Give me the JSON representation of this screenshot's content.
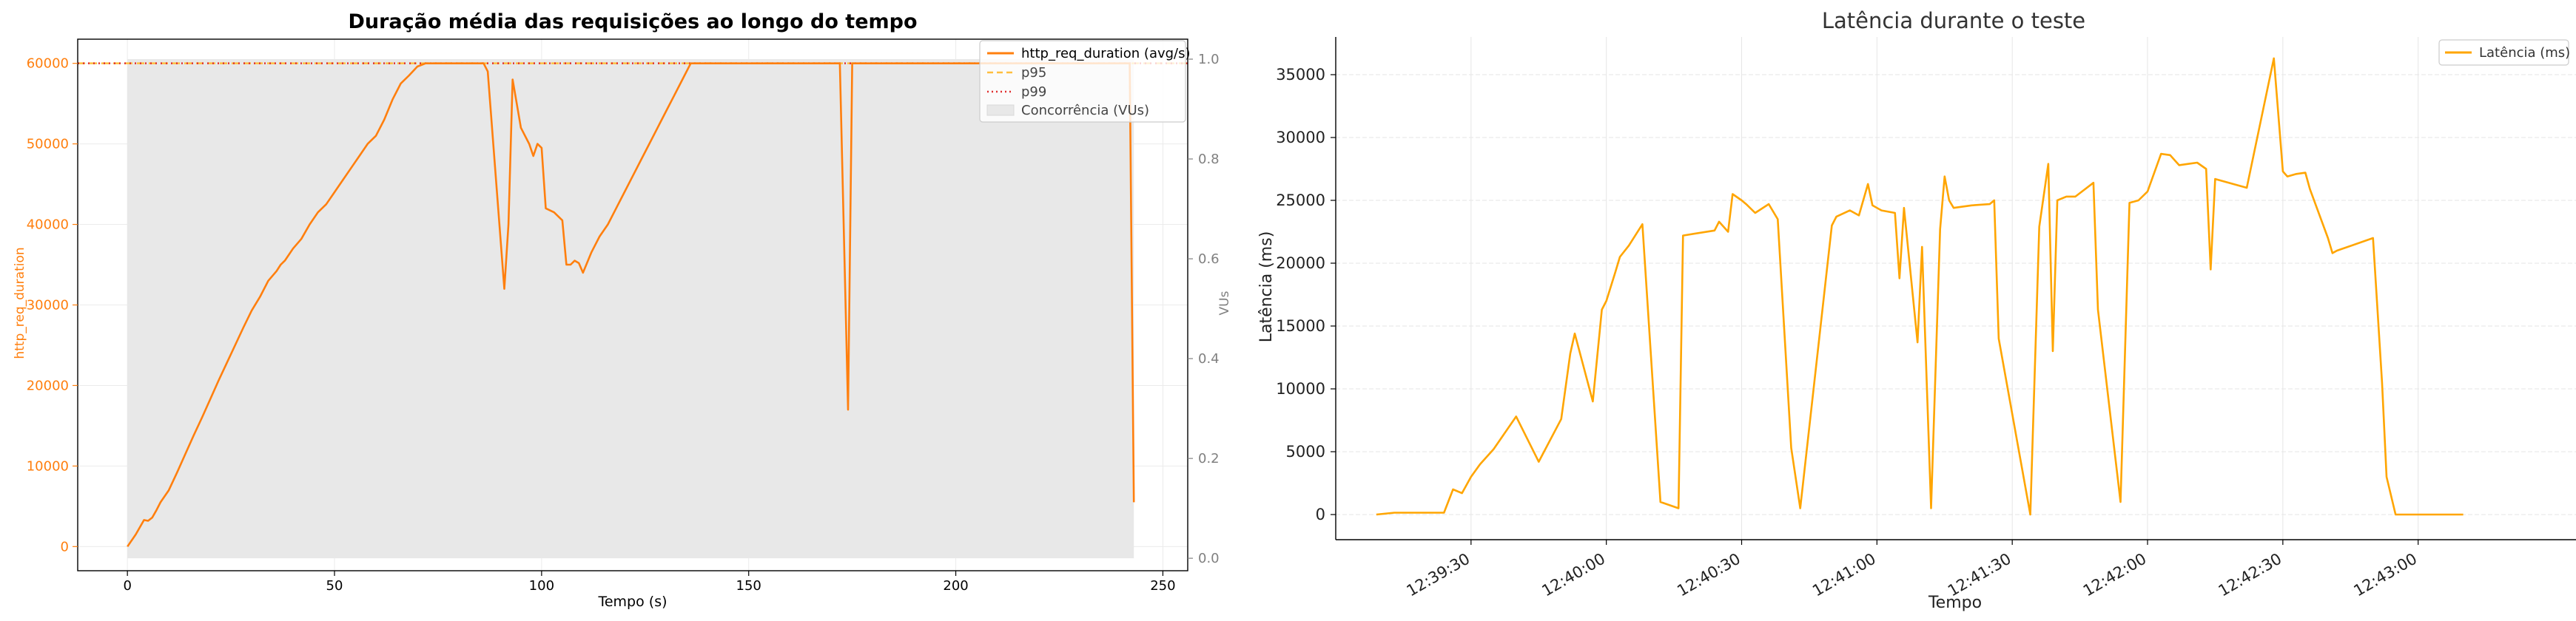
{
  "chart_data": [
    {
      "type": "line",
      "title": "Duração média das requisições ao longo do tempo",
      "xlabel": "Tempo (s)",
      "ylabel": "http_req_duration",
      "y2label": "VUs",
      "xlim": [
        -12,
        256
      ],
      "ylim": [
        -3000,
        63000
      ],
      "y2lim": [
        -0.025,
        1.04
      ],
      "xticks": [
        0,
        50,
        100,
        150,
        200,
        250
      ],
      "yticks": [
        0,
        10000,
        20000,
        30000,
        40000,
        50000,
        60000
      ],
      "y2ticks": [
        0.0,
        0.2,
        0.4,
        0.6,
        0.8,
        1.0
      ],
      "grid": true,
      "legend_position": "top-right",
      "legend": [
        "http_req_duration (avg/s)",
        "p95",
        "p99",
        "Concorrência (VUs)"
      ],
      "colors": {
        "avg": "#ff7f0e",
        "p95": "#ffbf3f",
        "p99": "#e03030",
        "area": "#e8e8e8",
        "axis_left": "#ff7f0e",
        "axis_right": "#808080"
      },
      "series": [
        {
          "name": "http_req_duration (avg/s)",
          "x": [
            0,
            2,
            4,
            5,
            6,
            7,
            8,
            10,
            12,
            14,
            16,
            18,
            20,
            22,
            24,
            26,
            28,
            30,
            32,
            34,
            36,
            37,
            38,
            40,
            42,
            44,
            46,
            48,
            50,
            52,
            54,
            56,
            58,
            60,
            62,
            64,
            66,
            68,
            70,
            72,
            74,
            76,
            86,
            87,
            91,
            92,
            93,
            95,
            97,
            98,
            99,
            100,
            101,
            103,
            105,
            106,
            107,
            108,
            109,
            110,
            112,
            114,
            116,
            118,
            120,
            122,
            124,
            126,
            128,
            130,
            132,
            134,
            136,
            138,
            140,
            172,
            174,
            175,
            176,
            242,
            243
          ],
          "y": [
            0,
            1500,
            3300,
            3200,
            3600,
            4500,
            5500,
            7000,
            9200,
            11500,
            13800,
            16000,
            18300,
            20600,
            22800,
            25000,
            27200,
            29300,
            31000,
            33000,
            34200,
            35000,
            35500,
            37000,
            38200,
            40000,
            41500,
            42500,
            44000,
            45500,
            47000,
            48500,
            50000,
            51000,
            53000,
            55500,
            57500,
            58500,
            59600,
            60000,
            60000,
            60000,
            60000,
            59000,
            32000,
            40000,
            58000,
            52000,
            50000,
            48500,
            50000,
            49500,
            42000,
            41500,
            40500,
            35000,
            35000,
            35500,
            35200,
            34000,
            36500,
            38500,
            40000,
            42000,
            44000,
            46000,
            48000,
            50000,
            52000,
            54000,
            56000,
            58000,
            60000,
            60000,
            60000,
            60000,
            17000,
            60000,
            60000,
            60000,
            5500
          ]
        },
        {
          "name": "p95",
          "x": [
            -12,
            256
          ],
          "y": [
            60000,
            60000
          ]
        },
        {
          "name": "p99",
          "x": [
            -12,
            256
          ],
          "y": [
            60000,
            60000
          ]
        },
        {
          "name": "Concorrência (VUs)",
          "x": [
            0,
            243
          ],
          "y": [
            1,
            1
          ]
        }
      ]
    },
    {
      "type": "line",
      "title": "Latência durante o teste",
      "xlabel": "Tempo",
      "ylabel": "Latência (ms)",
      "x_unit": "time (hh:mm:ss)",
      "xlim": [
        "12:39:00",
        "12:43:35"
      ],
      "ylim": [
        -2000,
        38000
      ],
      "xticks": [
        "12:39:30",
        "12:40:00",
        "12:40:30",
        "12:41:00",
        "12:41:30",
        "12:42:00",
        "12:42:30",
        "12:43:00"
      ],
      "yticks": [
        0,
        5000,
        10000,
        15000,
        20000,
        25000,
        30000,
        35000
      ],
      "grid": true,
      "legend_position": "top-right",
      "legend": [
        "Latência (ms)"
      ],
      "colors": {
        "line": "#ffa500"
      },
      "series": [
        {
          "name": "Latência (ms)",
          "x": [
            "12:39:09",
            "12:39:13",
            "12:39:24",
            "12:39:26",
            "12:39:28",
            "12:39:30",
            "12:39:32",
            "12:39:35",
            "12:39:40",
            "12:39:45",
            "12:39:50",
            "12:39:52",
            "12:39:53",
            "12:39:57",
            "12:39:59",
            "12:40:00",
            "12:40:02",
            "12:40:03",
            "12:40:05",
            "12:40:08",
            "12:40:12",
            "12:40:16",
            "12:40:17",
            "12:40:24",
            "12:40:25",
            "12:40:27",
            "12:40:28",
            "12:40:30",
            "12:40:31",
            "12:40:33",
            "12:40:36",
            "12:40:38",
            "12:40:41",
            "12:40:43",
            "12:40:50",
            "12:40:51",
            "12:40:54",
            "12:40:56",
            "12:40:58",
            "12:40:59",
            "12:41:01",
            "12:41:04",
            "12:41:05",
            "12:41:06",
            "12:41:09",
            "12:41:10",
            "12:41:12",
            "12:41:14",
            "12:41:15",
            "12:41:16",
            "12:41:17",
            "12:41:21",
            "12:41:25",
            "12:41:26",
            "12:41:27",
            "12:41:34",
            "12:41:36",
            "12:41:38",
            "12:41:39",
            "12:41:40",
            "12:41:42",
            "12:41:44",
            "12:41:48",
            "12:41:49",
            "12:41:54",
            "12:41:56",
            "12:41:58",
            "12:42:00",
            "12:42:01",
            "12:42:03",
            "12:42:05",
            "12:42:06",
            "12:42:07",
            "12:42:09",
            "12:42:11",
            "12:42:13",
            "12:42:14",
            "12:42:15",
            "12:42:22",
            "12:42:28",
            "12:42:30",
            "12:42:31",
            "12:42:33",
            "12:42:35",
            "12:42:36",
            "12:42:40",
            "12:42:41",
            "12:42:42",
            "12:42:50",
            "12:42:52",
            "12:42:53",
            "12:42:55",
            "12:42:57",
            "12:42:58",
            "12:43:01",
            "12:43:03",
            "12:43:05",
            "12:43:06",
            "12:43:10"
          ],
          "y": [
            0,
            150,
            150,
            2000,
            1700,
            3000,
            4000,
            5200,
            7800,
            4200,
            7600,
            12800,
            14400,
            9000,
            16300,
            17000,
            19300,
            20500,
            21400,
            23100,
            1000,
            500,
            22200,
            22600,
            23300,
            22500,
            25500,
            25000,
            24700,
            24000,
            24700,
            23500,
            5300,
            500,
            23000,
            23700,
            24200,
            23800,
            26300,
            24600,
            24200,
            24000,
            18800,
            24400,
            13700,
            21300,
            500,
            22700,
            26900,
            25000,
            24400,
            24600,
            24700,
            25000,
            14000,
            0,
            22900,
            27900,
            13000,
            25000,
            25300,
            25300,
            26400,
            16300,
            1000,
            24800,
            25000,
            25700,
            26700,
            28700,
            28600,
            28200,
            27800,
            27900,
            28000,
            27500,
            19500,
            26700,
            26000,
            36300,
            27300,
            26900,
            27100,
            27200,
            25900,
            22000,
            20800,
            21000,
            22000,
            10500,
            3000,
            0,
            0,
            0,
            0,
            0,
            0,
            0,
            0
          ]
        }
      ]
    }
  ]
}
